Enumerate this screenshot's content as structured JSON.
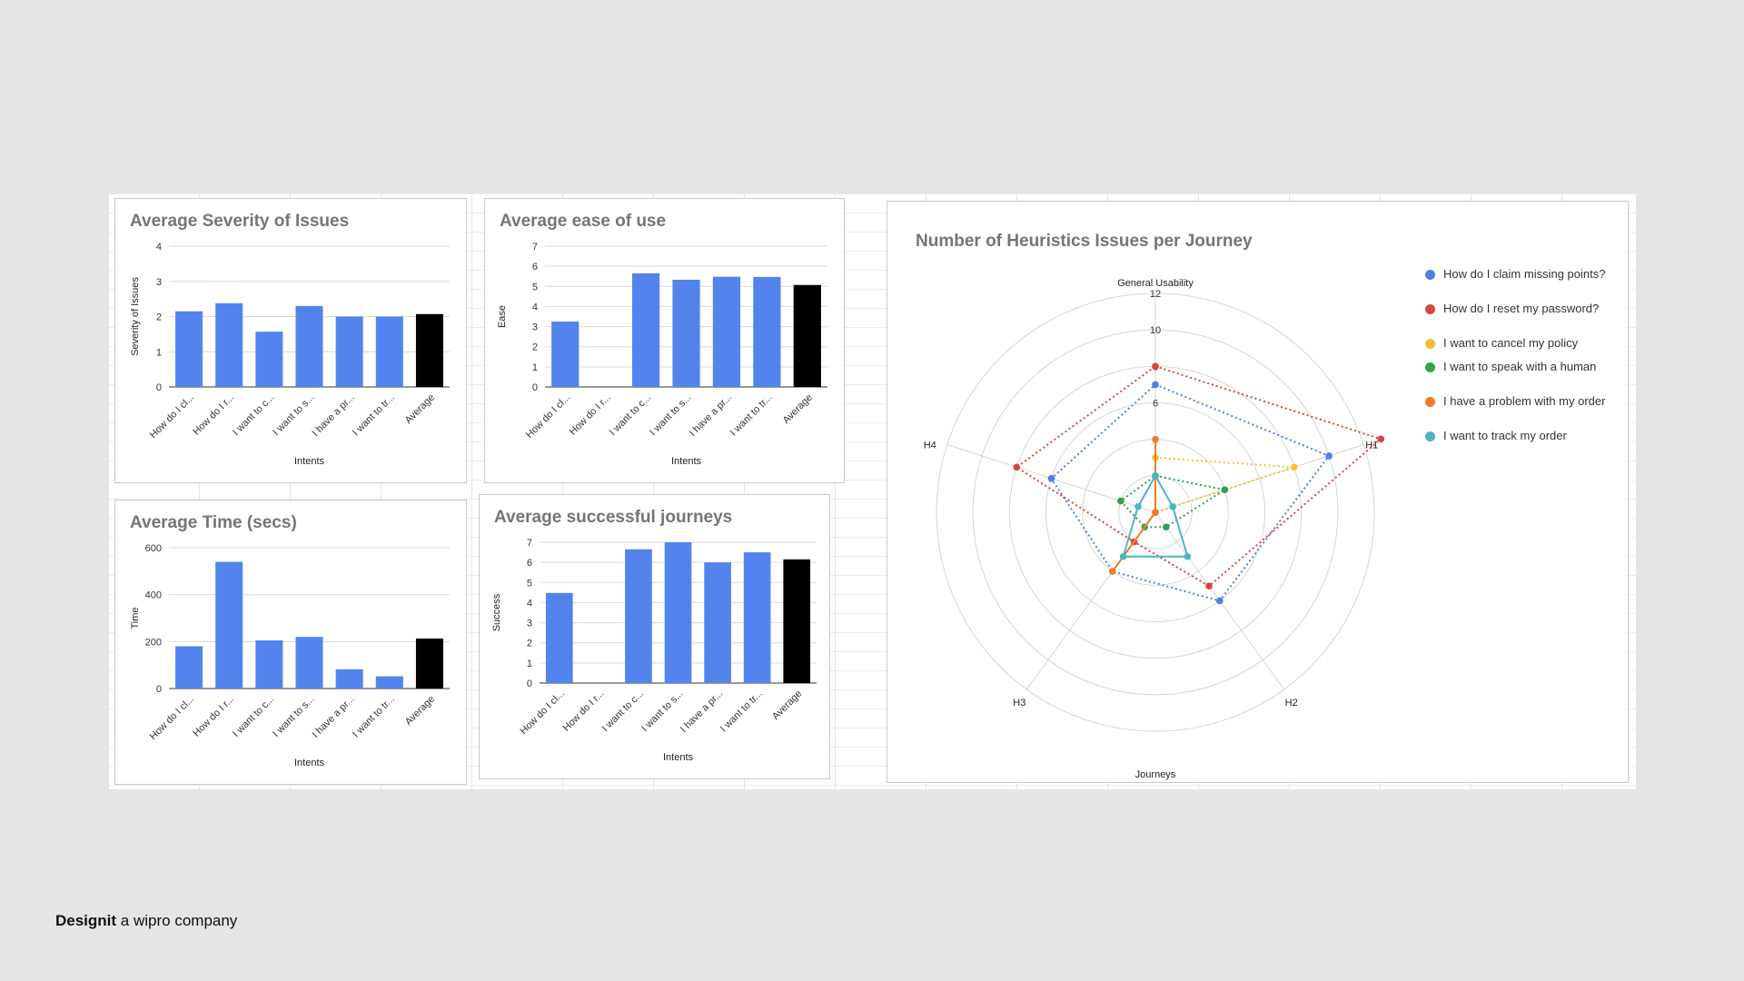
{
  "brand": {
    "name": "Designit",
    "tagline": "a wipro company"
  },
  "chart_data": [
    {
      "id": "severity",
      "type": "bar",
      "title": "Average Severity of Issues",
      "xlabel": "Intents",
      "ylabel": "Severity of Issues",
      "ylim": [
        0,
        4
      ],
      "yticks": [
        0,
        1,
        2,
        3,
        4
      ],
      "categories": [
        "How do I cl...",
        "How do I r...",
        "I want to c...",
        "I want to s...",
        "I have a pr...",
        "I want to tr...",
        "Average"
      ],
      "values": [
        2.15,
        2.38,
        1.57,
        2.3,
        2.0,
        2.0,
        2.07
      ],
      "bar_colors": [
        "#5384ed",
        "#5384ed",
        "#5384ed",
        "#5384ed",
        "#5384ed",
        "#5384ed",
        "#000000"
      ]
    },
    {
      "id": "ease",
      "type": "bar",
      "title": "Average ease of use",
      "xlabel": "Intents",
      "ylabel": "Ease",
      "ylim": [
        0,
        7
      ],
      "yticks": [
        0,
        1,
        2,
        3,
        4,
        5,
        6,
        7
      ],
      "categories": [
        "How do I cl...",
        "How do I r...",
        "I want to c...",
        "I want to s...",
        "I have a pr...",
        "I want to tr...",
        "Average"
      ],
      "values": [
        3.25,
        0,
        5.65,
        5.33,
        5.48,
        5.47,
        5.07
      ],
      "bar_colors": [
        "#5384ed",
        "#5384ed",
        "#5384ed",
        "#5384ed",
        "#5384ed",
        "#5384ed",
        "#000000"
      ]
    },
    {
      "id": "time",
      "type": "bar",
      "title": "Average Time (secs)",
      "xlabel": "Intents",
      "ylabel": "Time",
      "ylim": [
        0,
        600
      ],
      "yticks": [
        0,
        200,
        400,
        600
      ],
      "categories": [
        "How do I cl...",
        "How do I r...",
        "I want to c...",
        "I want to s...",
        "I have a pr...",
        "I want to tr...",
        "Average"
      ],
      "values": [
        180,
        540,
        205,
        220,
        82,
        52,
        213
      ],
      "bar_colors": [
        "#5384ed",
        "#5384ed",
        "#5384ed",
        "#5384ed",
        "#5384ed",
        "#5384ed",
        "#000000"
      ]
    },
    {
      "id": "success",
      "type": "bar",
      "title": "Average successful journeys",
      "xlabel": "Intents",
      "ylabel": "Success",
      "ylim": [
        0,
        7
      ],
      "yticks": [
        0,
        1,
        2,
        3,
        4,
        5,
        6,
        7
      ],
      "categories": [
        "How do I cl...",
        "How do I r...",
        "I want to c...",
        "I want to s...",
        "I have a pr...",
        "I want to tr...",
        "Average"
      ],
      "values": [
        4.48,
        0,
        6.65,
        7.0,
        6.0,
        6.5,
        6.15
      ],
      "bar_colors": [
        "#5384ed",
        "#5384ed",
        "#5384ed",
        "#5384ed",
        "#5384ed",
        "#5384ed",
        "#000000"
      ]
    },
    {
      "id": "radar",
      "type": "radar",
      "title": "Number of Heuristics Issues per Journey",
      "axis_title": "Journeys",
      "axes": [
        "General Usability",
        "H1",
        "H2",
        "H3",
        "H4"
      ],
      "rlim": [
        0,
        12
      ],
      "rticks": [
        0,
        2,
        4,
        6,
        8,
        10,
        12
      ],
      "legend_position": "right",
      "series": [
        {
          "name": "How do I claim missing points?",
          "color": "#4f7fe6",
          "dashed": true,
          "values": [
            7,
            10,
            6,
            4,
            6
          ]
        },
        {
          "name": "How do I reset my password?",
          "color": "#d9453b",
          "dashed": true,
          "values": [
            8,
            13,
            5,
            2,
            8
          ]
        },
        {
          "name": "I want to cancel my policy",
          "color": "#f4bf32",
          "dashed": true,
          "values": [
            3,
            8,
            0,
            0,
            0
          ]
        },
        {
          "name": "I want to speak with a human",
          "color": "#34a04d",
          "dashed": true,
          "values": [
            2,
            4,
            1,
            1,
            2
          ]
        },
        {
          "name": "I have a problem with my order",
          "color": "#f07c2a",
          "solid": true,
          "values": [
            4,
            0,
            0,
            4,
            0
          ]
        },
        {
          "name": "I want to track my order",
          "color": "#4ab5c4",
          "solid": true,
          "values": [
            2,
            1,
            3,
            3,
            1
          ]
        }
      ]
    }
  ]
}
